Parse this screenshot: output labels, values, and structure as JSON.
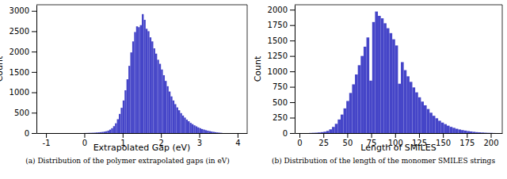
{
  "chart_data": [
    {
      "type": "histogram",
      "x_label": "Extrapolated Gap (eV)",
      "y_label": "Count",
      "caption": "(a) Distribution of the polymer extrapolated gaps (in eV)",
      "color": "#4545c8",
      "bins": [
        0.0,
        0.05,
        0.1,
        0.15,
        0.2,
        0.25,
        0.3,
        0.35,
        0.4,
        0.45,
        0.5,
        0.55,
        0.6,
        0.65,
        0.7,
        0.75,
        0.8,
        0.85,
        0.9,
        0.95,
        1.0,
        1.05,
        1.1,
        1.15,
        1.2,
        1.25,
        1.3,
        1.35,
        1.4,
        1.45,
        1.5,
        1.55,
        1.6,
        1.65,
        1.7,
        1.75,
        1.8,
        1.85,
        1.9,
        1.95,
        2.0,
        2.05,
        2.1,
        2.15,
        2.2,
        2.25,
        2.3,
        2.35,
        2.4,
        2.45,
        2.5,
        2.55,
        2.6,
        2.65,
        2.7,
        2.75,
        2.8,
        2.85,
        2.9,
        2.95,
        3.0,
        3.05,
        3.1,
        3.15,
        3.2,
        3.25,
        3.3,
        3.35,
        3.4,
        3.45,
        3.5,
        3.55,
        3.6
      ],
      "counts": [
        2,
        3,
        5,
        6,
        8,
        10,
        14,
        18,
        22,
        28,
        35,
        45,
        60,
        85,
        120,
        170,
        240,
        340,
        470,
        620,
        800,
        1050,
        1320,
        1650,
        1980,
        2250,
        2480,
        2620,
        2600,
        2650,
        2920,
        2780,
        2560,
        2500,
        2350,
        2250,
        2080,
        1950,
        1800,
        1700,
        1560,
        1420,
        1280,
        1150,
        1020,
        900,
        800,
        710,
        630,
        560,
        490,
        430,
        380,
        330,
        290,
        250,
        220,
        190,
        165,
        140,
        120,
        100,
        85,
        70,
        58,
        48,
        38,
        30,
        22,
        16,
        10,
        6
      ],
      "xlim": [
        -1.25,
        4.25
      ],
      "xticks": [
        -1,
        0,
        1,
        2,
        3,
        4
      ],
      "ylim": [
        0,
        3150
      ],
      "yticks": [
        0,
        500,
        1000,
        1500,
        2000,
        2500,
        3000
      ]
    },
    {
      "type": "histogram",
      "x_label": "Length of SMILES",
      "y_label": "Count",
      "caption": "(b) Distribution of the length of the monomer SMILES strings",
      "color": "#4545c8",
      "bins": [
        10,
        13,
        16,
        19,
        22,
        25,
        28,
        31,
        34,
        37,
        40,
        43,
        46,
        49,
        52,
        55,
        58,
        61,
        64,
        67,
        70,
        73,
        76,
        79,
        82,
        85,
        88,
        91,
        94,
        97,
        100,
        103,
        106,
        109,
        112,
        115,
        118,
        121,
        124,
        127,
        130,
        133,
        136,
        139,
        142,
        145,
        148,
        151,
        154,
        157,
        160,
        163,
        166,
        169,
        172,
        175,
        178,
        181,
        184,
        187,
        190,
        193,
        196,
        199,
        202,
        205
      ],
      "counts": [
        2,
        4,
        6,
        10,
        15,
        22,
        35,
        60,
        100,
        150,
        220,
        300,
        400,
        520,
        650,
        790,
        950,
        1100,
        1250,
        1400,
        1550,
        850,
        1800,
        1970,
        1900,
        1860,
        1780,
        1700,
        1620,
        1520,
        1420,
        800,
        1150,
        1020,
        920,
        830,
        740,
        660,
        580,
        510,
        450,
        390,
        330,
        280,
        240,
        200,
        170,
        145,
        120,
        100,
        85,
        70,
        58,
        48,
        40,
        32,
        26,
        20,
        15,
        12,
        9,
        6,
        4,
        3,
        1
      ],
      "xlim": [
        -5,
        212
      ],
      "xticks": [
        0,
        25,
        50,
        75,
        100,
        125,
        150,
        175,
        200
      ],
      "ylim": [
        0,
        2080
      ],
      "yticks": [
        0,
        250,
        500,
        750,
        1000,
        1250,
        1500,
        1750,
        2000
      ]
    }
  ]
}
